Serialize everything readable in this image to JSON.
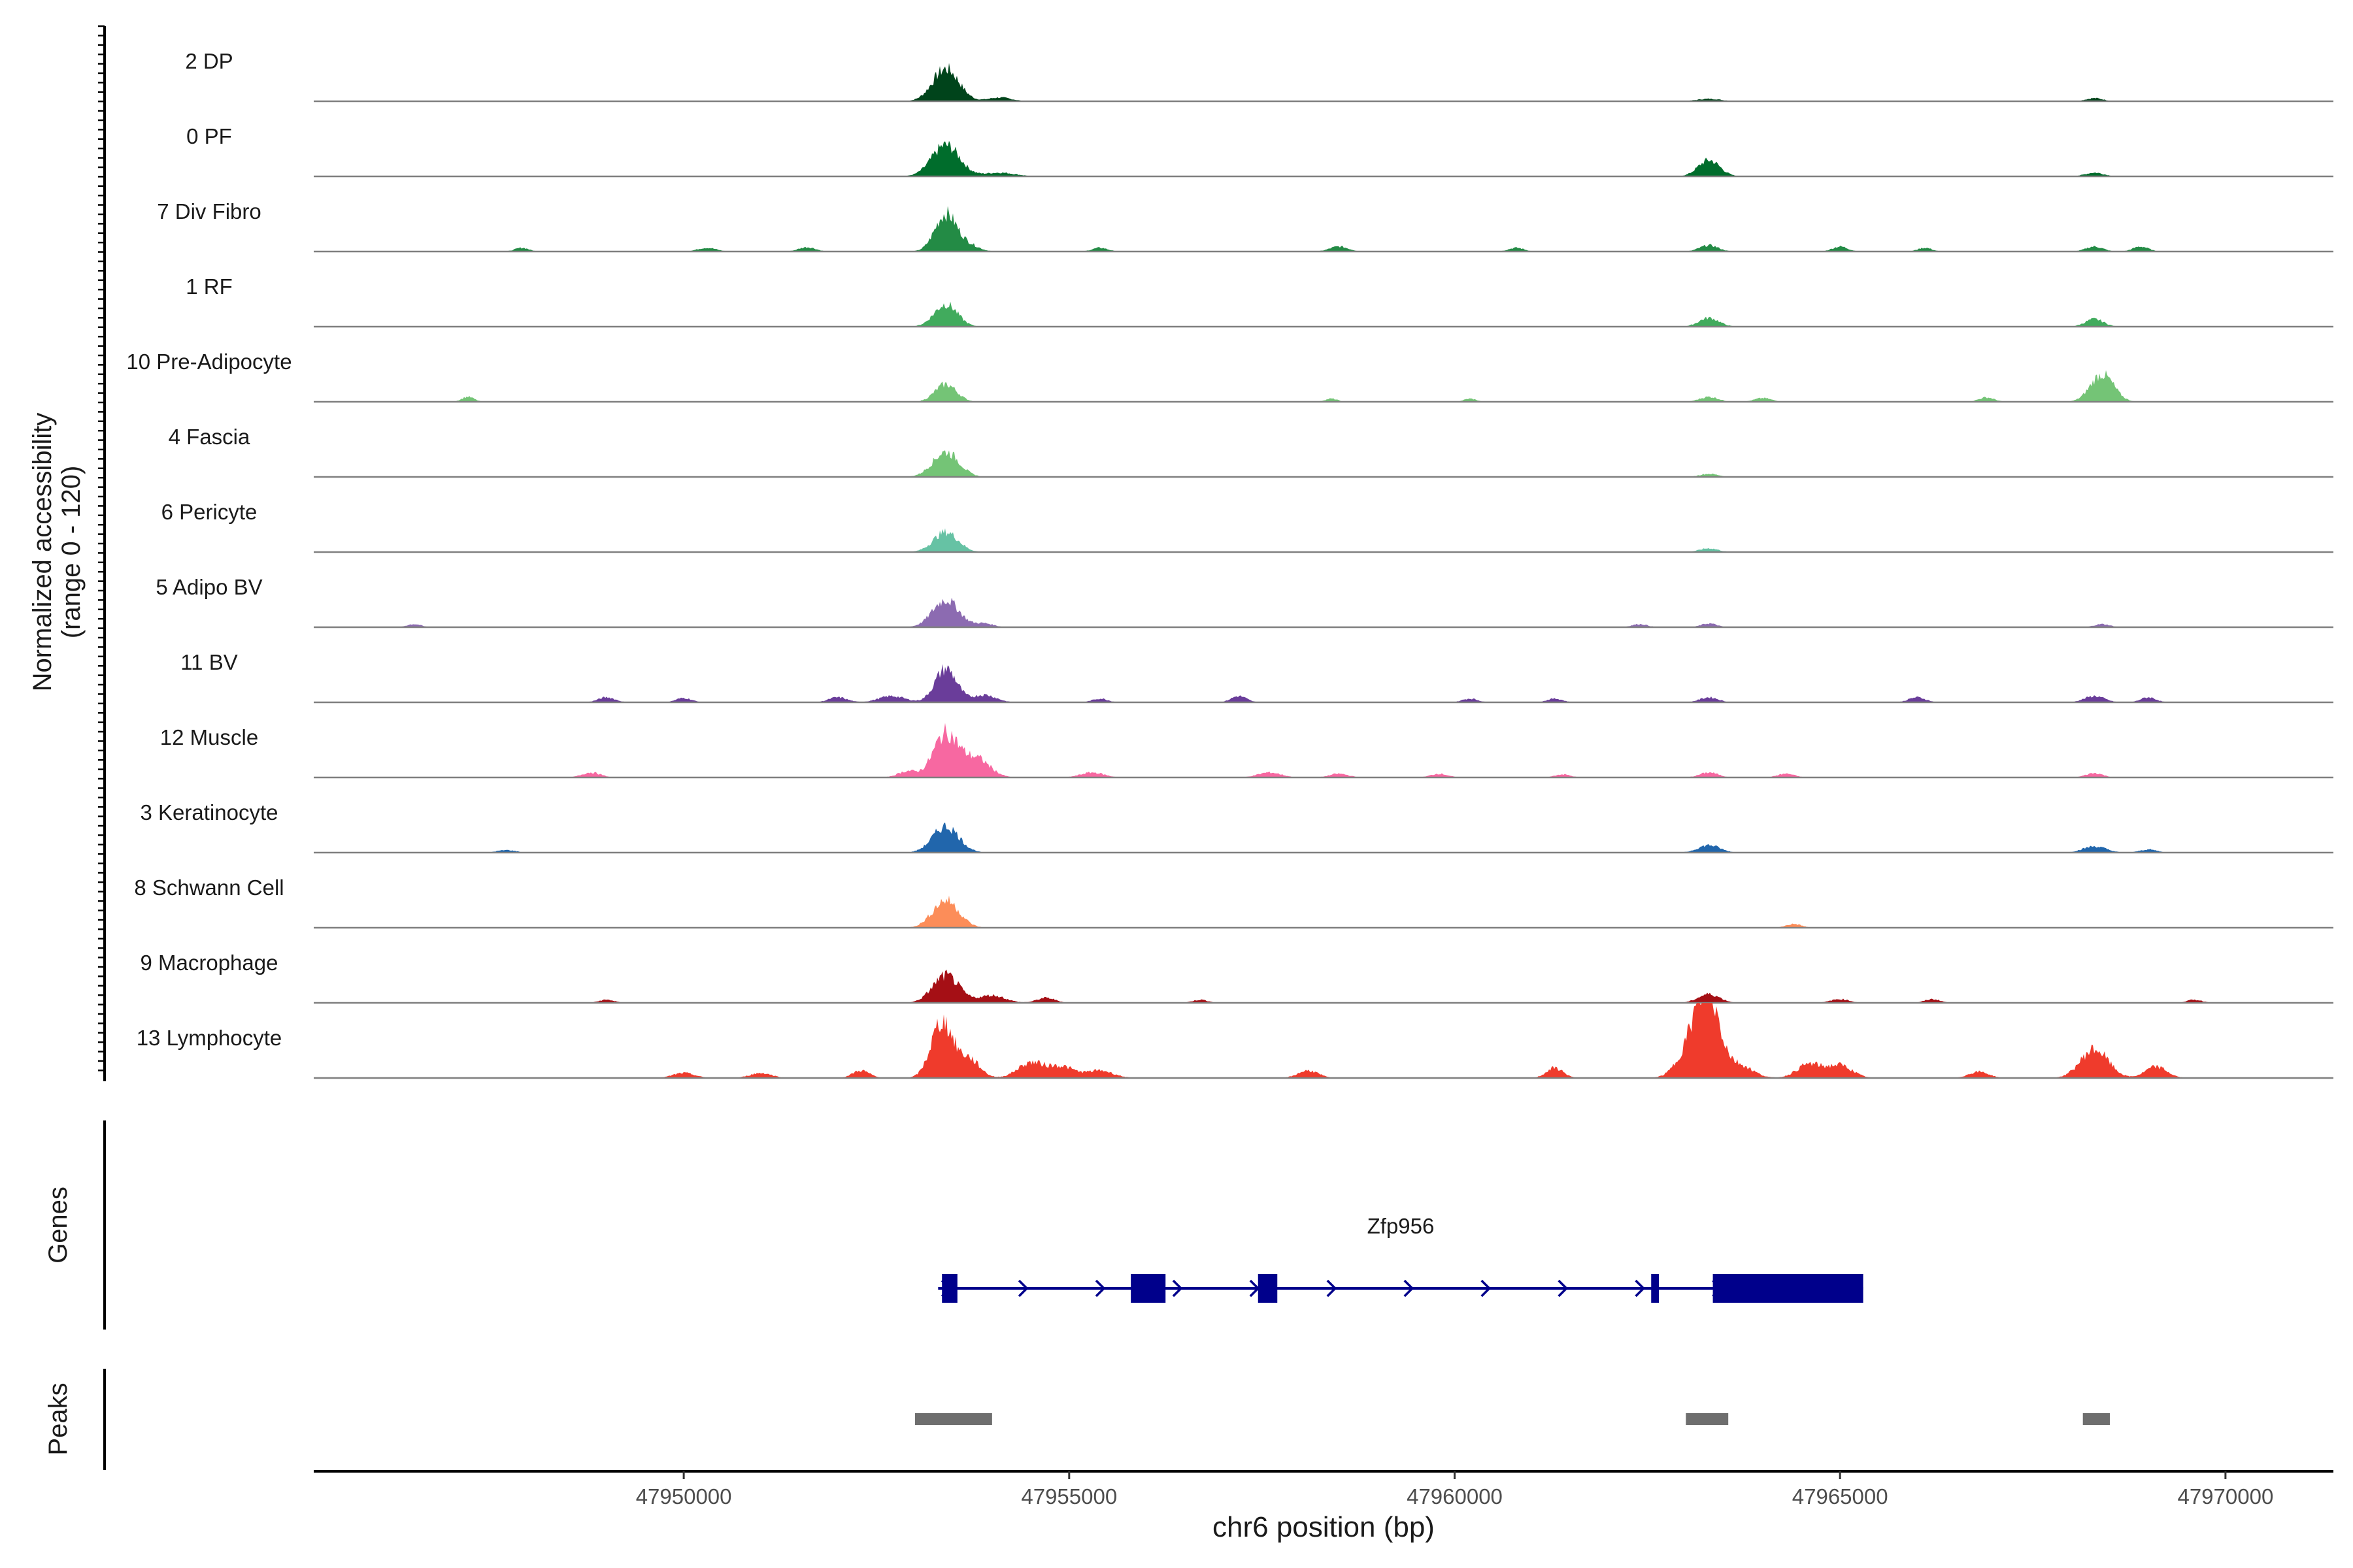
{
  "chart_data": {
    "type": "area",
    "title": "",
    "xlabel": "chr6 position (bp)",
    "ylabel": [
      "Normalized accessibility",
      "(range 0 - 120)"
    ],
    "ylim": [
      0,
      120
    ],
    "xlim": [
      47945200,
      47971400
    ],
    "x_ticks": [
      47950000,
      47955000,
      47960000,
      47965000,
      47970000
    ],
    "x_tick_labels": [
      "47950000",
      "47955000",
      "47960000",
      "47965000",
      "47970000"
    ],
    "panel_labels": {
      "genes": "Genes",
      "peaks": "Peaks"
    },
    "tracks": [
      {
        "name": "2 DP",
        "color": "#00441b",
        "peaks": [
          [
            47953400,
            52,
            170
          ],
          [
            47954100,
            6,
            150
          ],
          [
            47963300,
            4,
            150
          ],
          [
            47968300,
            5,
            110
          ]
        ]
      },
      {
        "name": "0 PF",
        "color": "#006d2c",
        "peaks": [
          [
            47953400,
            50,
            180
          ],
          [
            47954100,
            6,
            200
          ],
          [
            47963300,
            26,
            140
          ],
          [
            47968300,
            6,
            120
          ]
        ]
      },
      {
        "name": "7 Div Fibro",
        "color": "#238b45",
        "peaks": [
          [
            47953400,
            60,
            140
          ],
          [
            47953700,
            10,
            130
          ],
          [
            47947900,
            6,
            90
          ],
          [
            47950300,
            6,
            120
          ],
          [
            47951600,
            7,
            110
          ],
          [
            47955400,
            6,
            100
          ],
          [
            47958500,
            8,
            120
          ],
          [
            47960800,
            6,
            100
          ],
          [
            47963300,
            10,
            120
          ],
          [
            47965000,
            8,
            100
          ],
          [
            47966100,
            6,
            90
          ],
          [
            47968300,
            8,
            110
          ],
          [
            47968900,
            8,
            100
          ]
        ]
      },
      {
        "name": "1 RF",
        "color": "#41ab5d",
        "peaks": [
          [
            47953400,
            36,
            150
          ],
          [
            47963300,
            14,
            130
          ],
          [
            47968300,
            12,
            120
          ]
        ]
      },
      {
        "name": "10 Pre-Adipocyte",
        "color": "#74c476",
        "peaks": [
          [
            47953400,
            28,
            140
          ],
          [
            47947200,
            8,
            80
          ],
          [
            47958400,
            5,
            80
          ],
          [
            47960200,
            5,
            80
          ],
          [
            47963300,
            8,
            120
          ],
          [
            47964000,
            6,
            110
          ],
          [
            47966900,
            7,
            100
          ],
          [
            47968400,
            44,
            150
          ]
        ]
      },
      {
        "name": "4 Fascia",
        "color": "#74c476",
        "peaks": [
          [
            47953400,
            40,
            170
          ],
          [
            47963300,
            5,
            120
          ]
        ]
      },
      {
        "name": "6 Pericyte",
        "color": "#66c2a4",
        "peaks": [
          [
            47953400,
            32,
            160
          ],
          [
            47963300,
            6,
            120
          ]
        ]
      },
      {
        "name": "5 Adipo BV",
        "color": "#8c6bb1",
        "peaks": [
          [
            47953400,
            44,
            170
          ],
          [
            47953900,
            6,
            120
          ],
          [
            47946500,
            5,
            90
          ],
          [
            47962400,
            5,
            100
          ],
          [
            47963300,
            6,
            100
          ],
          [
            47968400,
            5,
            100
          ]
        ]
      },
      {
        "name": "11 BV",
        "color": "#6a3d9a",
        "peaks": [
          [
            47953400,
            54,
            140
          ],
          [
            47953900,
            12,
            150
          ],
          [
            47952700,
            10,
            170
          ],
          [
            47952000,
            8,
            120
          ],
          [
            47957200,
            10,
            100
          ],
          [
            47949000,
            8,
            110
          ],
          [
            47950000,
            7,
            100
          ],
          [
            47955400,
            6,
            100
          ],
          [
            47960200,
            6,
            100
          ],
          [
            47961300,
            6,
            100
          ],
          [
            47963300,
            8,
            120
          ],
          [
            47966000,
            8,
            110
          ],
          [
            47968300,
            10,
            130
          ],
          [
            47969000,
            8,
            100
          ]
        ]
      },
      {
        "name": "12 Muscle",
        "color": "#f768a1",
        "peaks": [
          [
            47953400,
            70,
            160
          ],
          [
            47953800,
            30,
            170
          ],
          [
            47952900,
            10,
            120
          ],
          [
            47948800,
            8,
            120
          ],
          [
            47955300,
            8,
            150
          ],
          [
            47957600,
            8,
            150
          ],
          [
            47958500,
            6,
            120
          ],
          [
            47959800,
            6,
            110
          ],
          [
            47961400,
            5,
            100
          ],
          [
            47963300,
            8,
            120
          ],
          [
            47964300,
            6,
            110
          ],
          [
            47968300,
            7,
            110
          ]
        ]
      },
      {
        "name": "3 Keratinocyte",
        "color": "#2166ac",
        "peaks": [
          [
            47953400,
            42,
            170
          ],
          [
            47963300,
            12,
            140
          ],
          [
            47968300,
            10,
            150
          ],
          [
            47969000,
            5,
            110
          ],
          [
            47947700,
            4,
            120
          ]
        ]
      },
      {
        "name": "8 Schwann Cell",
        "color": "#fc8d59",
        "peaks": [
          [
            47953400,
            44,
            170
          ],
          [
            47964400,
            6,
            100
          ]
        ]
      },
      {
        "name": "9 Macrophage",
        "color": "#a50f15",
        "peaks": [
          [
            47953400,
            44,
            170
          ],
          [
            47954000,
            12,
            170
          ],
          [
            47954700,
            8,
            120
          ],
          [
            47949000,
            5,
            100
          ],
          [
            47956700,
            5,
            100
          ],
          [
            47963300,
            14,
            140
          ],
          [
            47965000,
            6,
            120
          ],
          [
            47966200,
            6,
            100
          ],
          [
            47969600,
            5,
            100
          ]
        ]
      },
      {
        "name": "13 Lymphocyte",
        "color": "#ef3b2c",
        "peaks": [
          [
            47953350,
            90,
            140
          ],
          [
            47953700,
            30,
            140
          ],
          [
            47954500,
            24,
            170
          ],
          [
            47954900,
            18,
            170
          ],
          [
            47955400,
            12,
            170
          ],
          [
            47950000,
            8,
            140
          ],
          [
            47951000,
            8,
            140
          ],
          [
            47952300,
            12,
            110
          ],
          [
            47958100,
            12,
            130
          ],
          [
            47961300,
            16,
            110
          ],
          [
            47963100,
            55,
            180
          ],
          [
            47963300,
            110,
            150
          ],
          [
            47963700,
            20,
            170
          ],
          [
            47964600,
            22,
            160
          ],
          [
            47965000,
            20,
            160
          ],
          [
            47966800,
            10,
            130
          ],
          [
            47968300,
            46,
            180
          ],
          [
            47969100,
            18,
            140
          ]
        ]
      }
    ],
    "gene": {
      "name": "Zfp956",
      "color": "#00008b",
      "strand": "+",
      "start": 47953300,
      "end": 47965300,
      "exons": [
        [
          47953350,
          47953550
        ],
        [
          47955800,
          47956250
        ],
        [
          47957450,
          47957700
        ],
        [
          47962550,
          47962650
        ],
        [
          47963350,
          47965300
        ]
      ]
    },
    "peak_regions": {
      "color": "#6e6e6e",
      "regions": [
        [
          47953000,
          47954000
        ],
        [
          47963000,
          47963550
        ],
        [
          47968150,
          47968500
        ]
      ]
    }
  }
}
